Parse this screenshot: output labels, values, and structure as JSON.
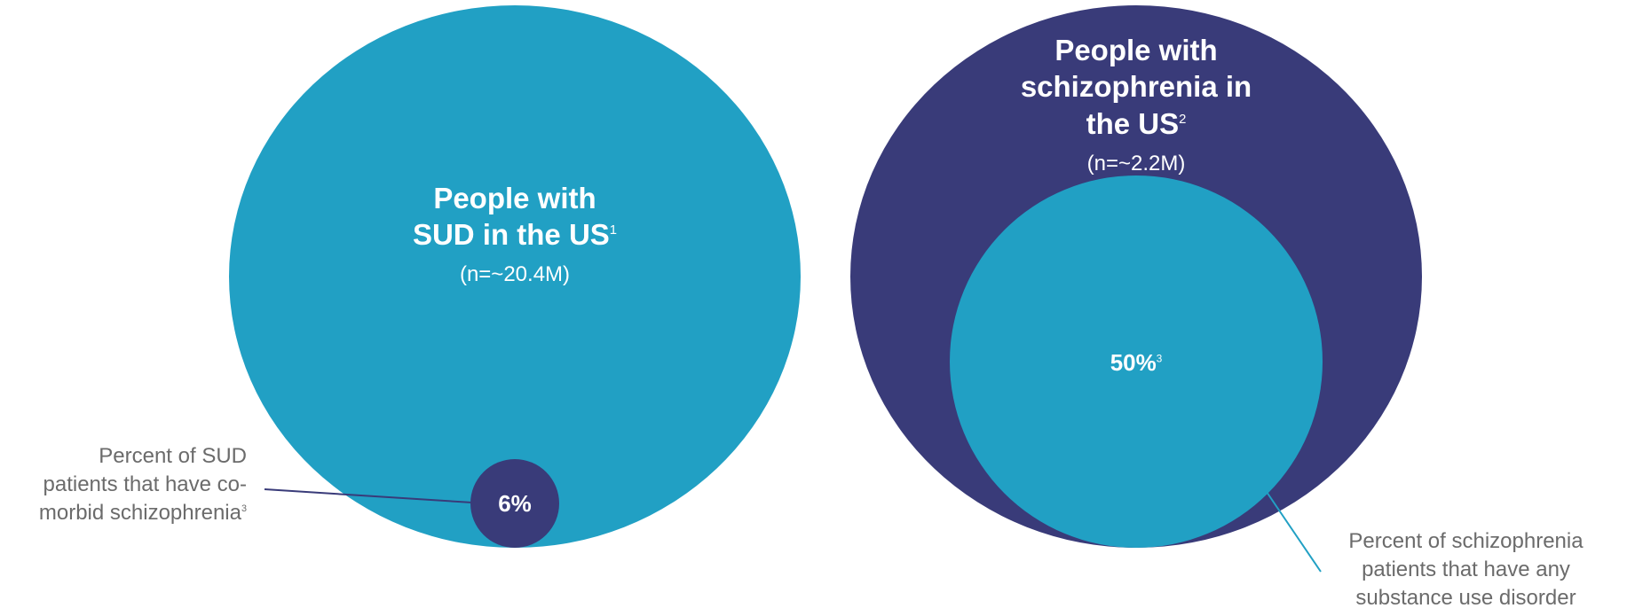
{
  "colors": {
    "teal": "#21a0c4",
    "navy": "#393b79",
    "callout_text": "#6b6b6b",
    "white": "#ffffff"
  },
  "left_group": {
    "title_line1": "People with",
    "title_line2": "SUD in the US",
    "title_ref": "1",
    "count": "(n=~20.4M)",
    "inner_value": "6%",
    "callout": {
      "line1": "Percent of SUD",
      "line2": "patients that have co-",
      "line3": "morbid schizophrenia",
      "ref": "3"
    }
  },
  "right_group": {
    "title_line1": "People with",
    "title_line2": "schizophrenia in",
    "title_line3": "the US",
    "title_ref": "2",
    "count": "(n=~2.2M)",
    "inner_value": "50%",
    "inner_ref": "3",
    "callout": {
      "line1": "Percent of schizophrenia",
      "line2": "patients that have any",
      "line3": "substance use disorder"
    }
  }
}
